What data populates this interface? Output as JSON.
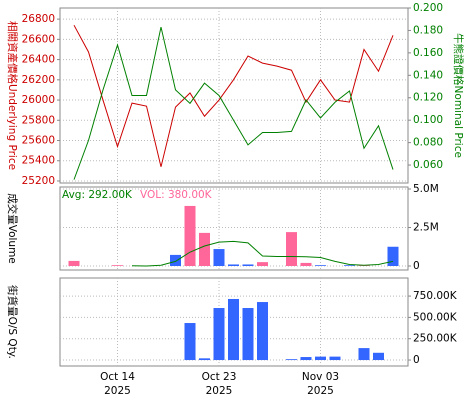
{
  "chart_data": [
    {
      "type": "line",
      "ylabel": "相關資產價格Underlying Price",
      "y2label": "牛熊證價格Nominal Price",
      "ylim": [
        25180,
        26910
      ],
      "yticks": [
        25200,
        25400,
        25600,
        25800,
        26000,
        26200,
        26400,
        26600,
        26800
      ],
      "y2lim": [
        0.044,
        0.2
      ],
      "y2ticks": [
        {
          "value": 0.06,
          "label": "0.060"
        },
        {
          "value": 0.08,
          "label": "0.080"
        },
        {
          "value": 0.1,
          "label": "0.100"
        },
        {
          "value": 0.12,
          "label": "0.120"
        },
        {
          "value": 0.14,
          "label": "0.140"
        },
        {
          "value": 0.16,
          "label": "0.160"
        },
        {
          "value": 0.18,
          "label": "0.180"
        },
        {
          "value": 0.2,
          "label": "0.200"
        }
      ],
      "grid": true,
      "series": [
        {
          "color": "#cc0000",
          "values": [
            26740,
            26475,
            26000,
            25540,
            25970,
            25940,
            25340,
            25930,
            26070,
            25840,
            26000,
            26200,
            26435,
            26365,
            26335,
            26295,
            25980,
            26200,
            26000,
            25980,
            26500,
            26285,
            26640
          ]
        },
        {
          "color": "#008000",
          "axis": "y2",
          "values": [
            0.047,
            0.082,
            0.127,
            0.167,
            0.122,
            0.122,
            0.183,
            0.127,
            0.115,
            0.133,
            0.122,
            0.1,
            0.078,
            0.089,
            0.089,
            0.09,
            0.118,
            0.102,
            0.116,
            0.126,
            0.075,
            0.095,
            0.056
          ]
        }
      ]
    },
    {
      "type": "bar",
      "ylabel": "成交量Volume",
      "annotations": [
        {
          "text": "Avg: 292.00K",
          "color": "#008000"
        },
        {
          "text": "VOL: 380.00K",
          "color": "#ff6699"
        }
      ],
      "ylim": [
        -260000,
        5130000
      ],
      "yticks": [
        0,
        {
          "value": 2500000,
          "label": "2.5M"
        },
        {
          "value": 5000000,
          "label": "5.0M"
        }
      ],
      "grid": true,
      "series": [
        {
          "values": [
            330000,
            0,
            0,
            50000,
            0,
            0,
            0,
            720000,
            3900000,
            2150000,
            1100000,
            100000,
            100000,
            250000,
            0,
            2200000,
            200000,
            50000,
            0,
            50000,
            50000,
            0,
            1250000
          ],
          "colors": [
            "#ff6699",
            "#ff6699",
            "#ff6699",
            "#ff6699",
            "#ff6699",
            "#ff6699",
            "#ff6699",
            "#3366ff",
            "#ff6699",
            "#ff6699",
            "#3366ff",
            "#3366ff",
            "#3366ff",
            "#ff6699",
            "#ff6699",
            "#ff6699",
            "#ff6699",
            "#3366ff",
            "#3366ff",
            "#3366ff",
            "#ff6699",
            "#3366ff",
            "#3366ff"
          ]
        },
        {
          "type": "line",
          "color": "#008000",
          "values": [
            null,
            null,
            null,
            null,
            20000,
            0,
            50000,
            300000,
            900000,
            1300000,
            1550000,
            1600000,
            1500000,
            650000,
            620000,
            620000,
            600000,
            550000,
            300000,
            100000,
            50000,
            100000,
            300000
          ]
        }
      ]
    },
    {
      "type": "bar",
      "ylabel": "街貨量O/S Qty.",
      "ylim": [
        -70000,
        962000
      ],
      "yticks": [
        0,
        {
          "value": 250000,
          "label": "250.00K"
        },
        {
          "value": 500000,
          "label": "500.00K"
        },
        {
          "value": 750000,
          "label": "750.00K"
        }
      ],
      "grid": true,
      "categories": [
        null,
        null,
        null,
        "Oct 14",
        null,
        null,
        null,
        null,
        null,
        null,
        "Oct 23",
        null,
        null,
        null,
        null,
        null,
        null,
        "Nov 03",
        null,
        null,
        null,
        null,
        null
      ],
      "category_years": [
        null,
        null,
        null,
        "2025",
        null,
        null,
        null,
        null,
        null,
        null,
        "2025",
        null,
        null,
        null,
        null,
        null,
        null,
        "2025",
        null,
        null,
        null,
        null,
        null
      ],
      "series": [
        {
          "color": "#3366ff",
          "values": [
            0,
            0,
            0,
            0,
            0,
            0,
            0,
            0,
            434000,
            20000,
            610000,
            716000,
            610000,
            680000,
            0,
            10000,
            35000,
            40000,
            40000,
            0,
            140000,
            85000,
            0
          ]
        }
      ]
    }
  ]
}
